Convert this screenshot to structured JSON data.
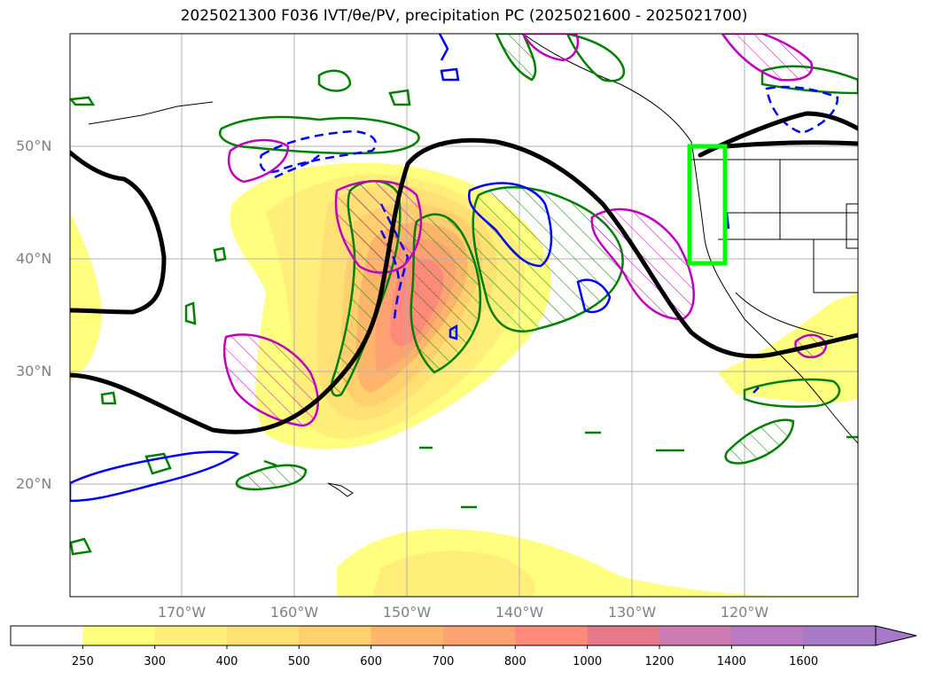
{
  "title": "2025021300 F036 IVT/θe/PV, precipitation PC (2025021600 - 2025021700)",
  "latitude_labels": [
    "50°N",
    "40°N",
    "30°N",
    "20°N"
  ],
  "longitude_labels": [
    "170°W",
    "160°W",
    "150°W",
    "140°W",
    "130°W",
    "120°W"
  ],
  "colorbar": {
    "ticks": [
      "250",
      "300",
      "400",
      "500",
      "600",
      "700",
      "800",
      "1000",
      "1200",
      "1400",
      "1600"
    ],
    "colors": [
      "#ffffff",
      "#ffff7f",
      "#ffef7a",
      "#ffe074",
      "#ffd06d",
      "#ffb46b",
      "#ffa272",
      "#ff8a7a",
      "#e67a8a",
      "#cc7ab0",
      "#b87ac0",
      "#a67ac8"
    ],
    "extend": "max"
  },
  "legend_colors": {
    "theta_e_contour": "#000000",
    "precip_positive": "#008000",
    "precip_negative": "#0000ff",
    "pv_contour": "#c000c0",
    "target_box": "#00ff00"
  }
}
